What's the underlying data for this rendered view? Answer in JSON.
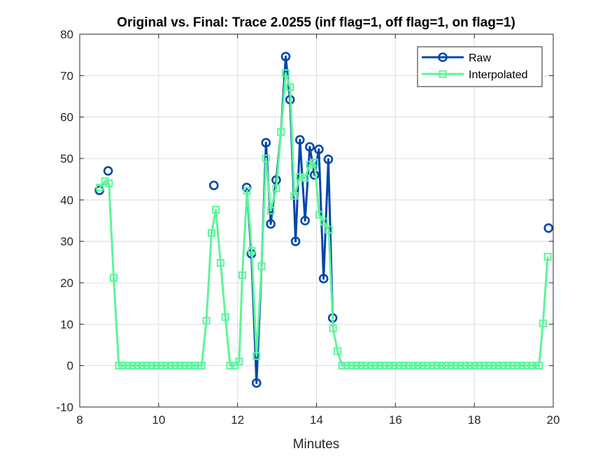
{
  "chart_data": {
    "type": "line",
    "title": "Original vs. Final: Trace 2.0255 (inf flag=1, off flag=1, on flag=1)",
    "xlabel": "Minutes",
    "ylabel": "",
    "xlim": [
      8,
      20
    ],
    "ylim": [
      -10,
      80
    ],
    "xticks": [
      8,
      10,
      12,
      14,
      16,
      18,
      20
    ],
    "yticks": [
      -10,
      0,
      10,
      20,
      30,
      40,
      50,
      60,
      70,
      80
    ],
    "grid": true,
    "legend_position": "top-right",
    "series": [
      {
        "name": "Raw",
        "color": "#0047ab",
        "marker": "circle",
        "line_segments": [
          [
            [
              12.23,
              43.0
            ],
            [
              12.35,
              27.0
            ],
            [
              12.48,
              -4.2
            ],
            [
              12.61,
              24.0
            ],
            [
              12.72,
              53.8
            ],
            [
              12.84,
              34.2
            ],
            [
              12.98,
              44.8
            ],
            [
              13.1,
              56.4
            ],
            [
              13.22,
              74.6
            ],
            [
              13.33,
              64.2
            ],
            [
              13.47,
              30.0
            ],
            [
              13.58,
              54.5
            ],
            [
              13.71,
              35.0
            ],
            [
              13.83,
              52.8
            ],
            [
              13.95,
              46.0
            ],
            [
              14.06,
              52.2
            ],
            [
              14.18,
              21.0
            ],
            [
              14.3,
              49.8
            ],
            [
              14.41,
              11.5
            ]
          ]
        ],
        "points": [
          [
            8.5,
            42.3
          ],
          [
            8.72,
            47.0
          ],
          [
            11.4,
            43.5
          ],
          [
            12.23,
            43.0
          ],
          [
            12.35,
            27.0
          ],
          [
            12.48,
            -4.2
          ],
          [
            12.72,
            53.8
          ],
          [
            12.84,
            34.2
          ],
          [
            12.98,
            44.8
          ],
          [
            13.22,
            74.6
          ],
          [
            13.33,
            64.2
          ],
          [
            13.47,
            30.0
          ],
          [
            13.58,
            54.5
          ],
          [
            13.71,
            35.0
          ],
          [
            13.83,
            52.8
          ],
          [
            13.95,
            46.0
          ],
          [
            14.06,
            52.2
          ],
          [
            14.18,
            21.0
          ],
          [
            14.3,
            49.8
          ],
          [
            14.41,
            11.5
          ],
          [
            19.88,
            33.2
          ]
        ]
      },
      {
        "name": "Interpolated",
        "color": "#5cf59a",
        "marker": "square",
        "x": [
          8.51,
          8.64,
          8.74,
          8.86,
          8.99,
          9.1,
          9.22,
          9.34,
          9.46,
          9.58,
          9.7,
          9.82,
          9.94,
          10.06,
          10.18,
          10.3,
          10.42,
          10.54,
          10.66,
          10.78,
          10.9,
          11.0,
          11.09,
          11.21,
          11.34,
          11.45,
          11.57,
          11.69,
          11.81,
          11.93,
          12.04,
          12.12,
          12.24,
          12.36,
          12.48,
          12.61,
          12.72,
          12.84,
          12.98,
          13.1,
          13.22,
          13.33,
          13.44,
          13.58,
          13.71,
          13.83,
          13.95,
          14.07,
          14.19,
          14.31,
          14.42,
          14.53,
          14.65,
          14.77,
          14.89,
          15.01,
          15.13,
          15.25,
          15.37,
          15.49,
          15.61,
          15.73,
          15.85,
          15.97,
          16.09,
          16.21,
          16.33,
          16.45,
          16.57,
          16.69,
          16.81,
          16.93,
          17.05,
          17.17,
          17.29,
          17.41,
          17.53,
          17.65,
          17.77,
          17.89,
          18.01,
          18.13,
          18.25,
          18.37,
          18.49,
          18.61,
          18.73,
          18.85,
          18.97,
          19.09,
          19.21,
          19.33,
          19.45,
          19.57,
          19.64,
          19.74,
          19.86
        ],
        "y": [
          43.0,
          44.5,
          44.0,
          21.2,
          0,
          0,
          0,
          0,
          0,
          0,
          0,
          0,
          0,
          0,
          0,
          0,
          0,
          0,
          0,
          0,
          0,
          0,
          0,
          10.8,
          32.0,
          37.6,
          24.8,
          11.7,
          0,
          0,
          1.0,
          21.8,
          42.2,
          27.7,
          2.3,
          24.0,
          50.0,
          37.4,
          42.8,
          56.4,
          70.6,
          67.2,
          41.0,
          45.5,
          45.3,
          48.5,
          49.0,
          36.4,
          34.7,
          32.8,
          9.0,
          3.5,
          0,
          0,
          0,
          0,
          0,
          0,
          0,
          0,
          0,
          0,
          0,
          0,
          0,
          0,
          0,
          0,
          0,
          0,
          0,
          0,
          0,
          0,
          0,
          0,
          0,
          0,
          0,
          0,
          0,
          0,
          0,
          0,
          0,
          0,
          0,
          0,
          0,
          0,
          0,
          0,
          0,
          0,
          0,
          10.2,
          26.3
        ]
      }
    ]
  }
}
